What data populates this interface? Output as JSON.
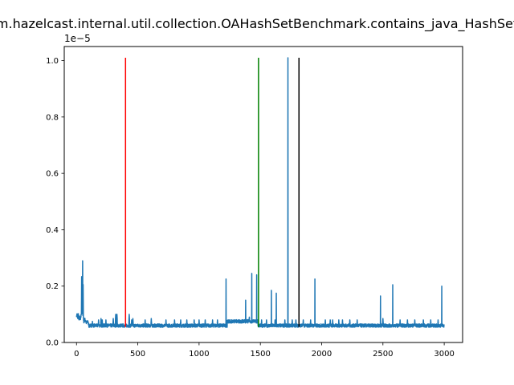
{
  "chart_data": {
    "type": "line",
    "title": "m.hazelcast.internal.util.collection.OAHashSetBenchmark.contains_java_HashSet",
    "xlabel": "",
    "ylabel": "",
    "y_offset_text": "1e−5",
    "xlim": [
      -100,
      3150
    ],
    "ylim": [
      0,
      1.05
    ],
    "y_unit_multiplier": 1e-05,
    "x_ticks": [
      0,
      500,
      1000,
      1500,
      2000,
      2500,
      3000
    ],
    "x_tick_labels": [
      "0",
      "500",
      "1000",
      "1500",
      "2000",
      "2500",
      "3000"
    ],
    "y_ticks": [
      0.0,
      0.2,
      0.4,
      0.6,
      0.8,
      1.0
    ],
    "y_tick_labels": [
      "0.0",
      "0.2",
      "0.4",
      "0.6",
      "0.8",
      "1.0"
    ],
    "grid": false,
    "series_color": "#1f77b4",
    "series_length": 3000,
    "baseline_level": 0.06,
    "baseline_noise": 0.006,
    "initial_segment": [
      [
        0,
        0.095
      ],
      [
        5,
        0.1
      ],
      [
        10,
        0.085
      ],
      [
        15,
        0.1
      ],
      [
        20,
        0.08
      ],
      [
        25,
        0.095
      ],
      [
        30,
        0.08
      ],
      [
        35,
        0.09
      ],
      [
        40,
        0.1
      ],
      [
        42,
        0.23
      ],
      [
        44,
        0.1
      ],
      [
        46,
        0.2
      ],
      [
        48,
        0.12
      ],
      [
        50,
        0.295
      ],
      [
        52,
        0.1
      ],
      [
        54,
        0.21
      ],
      [
        56,
        0.09
      ],
      [
        60,
        0.07
      ],
      [
        65,
        0.085
      ],
      [
        70,
        0.08
      ],
      [
        80,
        0.07
      ],
      [
        90,
        0.075
      ],
      [
        100,
        0.065
      ]
    ],
    "bumps": [
      [
        130,
        0.075
      ],
      [
        180,
        0.08
      ],
      [
        200,
        0.085
      ],
      [
        210,
        0.08
      ],
      [
        240,
        0.08
      ],
      [
        300,
        0.085
      ],
      [
        320,
        0.1
      ],
      [
        330,
        0.1
      ],
      [
        430,
        0.1
      ],
      [
        450,
        0.08
      ],
      [
        460,
        0.085
      ],
      [
        560,
        0.08
      ],
      [
        610,
        0.085
      ],
      [
        730,
        0.08
      ],
      [
        800,
        0.08
      ],
      [
        850,
        0.08
      ],
      [
        900,
        0.08
      ],
      [
        960,
        0.08
      ],
      [
        1000,
        0.08
      ],
      [
        1050,
        0.08
      ],
      [
        1110,
        0.08
      ],
      [
        1150,
        0.08
      ],
      [
        1290,
        0.08
      ],
      [
        1330,
        0.08
      ],
      [
        1410,
        0.09
      ],
      [
        1450,
        0.08
      ],
      [
        1510,
        0.08
      ],
      [
        1550,
        0.08
      ],
      [
        1620,
        0.08
      ],
      [
        1700,
        0.08
      ],
      [
        1760,
        0.08
      ],
      [
        1790,
        0.08
      ],
      [
        1850,
        0.08
      ],
      [
        1910,
        0.08
      ],
      [
        2030,
        0.08
      ],
      [
        2070,
        0.08
      ],
      [
        2090,
        0.08
      ],
      [
        2140,
        0.08
      ],
      [
        2170,
        0.08
      ],
      [
        2230,
        0.08
      ],
      [
        2290,
        0.08
      ],
      [
        2500,
        0.085
      ],
      [
        2640,
        0.08
      ],
      [
        2700,
        0.08
      ],
      [
        2760,
        0.08
      ],
      [
        2830,
        0.08
      ],
      [
        2890,
        0.08
      ],
      [
        2950,
        0.08
      ]
    ],
    "spikes": [
      [
        1220,
        0.225
      ],
      [
        1380,
        0.15
      ],
      [
        1430,
        0.245
      ],
      [
        1470,
        0.24
      ],
      [
        1590,
        0.185
      ],
      [
        1630,
        0.175
      ],
      [
        1725,
        1.01
      ],
      [
        1945,
        0.225
      ],
      [
        2480,
        0.165
      ],
      [
        2580,
        0.205
      ],
      [
        2980,
        0.2
      ]
    ],
    "plateau": {
      "x_start": 1230,
      "x_end": 1480,
      "level": 0.075
    },
    "vertical_lines": [
      {
        "x": 400,
        "color": "#ff0000",
        "y_bottom": 0.055,
        "y_top": 1.01
      },
      {
        "x": 1485,
        "color": "#008000",
        "y_bottom": 0.055,
        "y_top": 1.01
      },
      {
        "x": 1815,
        "color": "#000000",
        "y_bottom": 0.055,
        "y_top": 1.01
      }
    ]
  }
}
